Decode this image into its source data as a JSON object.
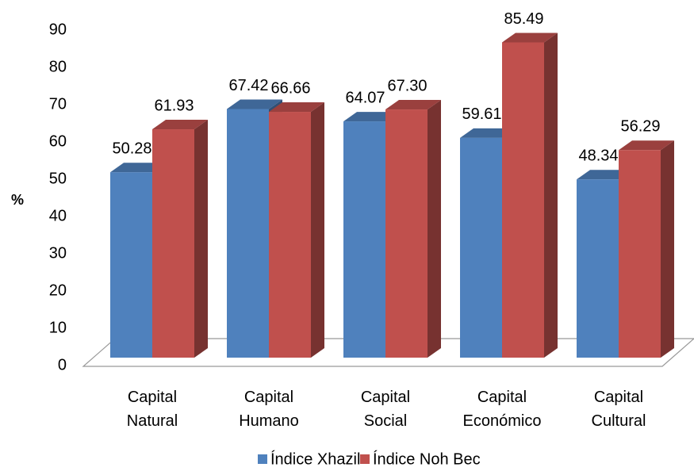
{
  "chart_data": {
    "type": "bar3d",
    "y_label": "%",
    "categories": [
      "Capital Natural",
      "Capital Humano",
      "Capital Social",
      "Capital Económico",
      "Capital Cultural"
    ],
    "series": [
      {
        "name": "Índice Xhazil",
        "color": "#4f81bd",
        "values": [
          50.28,
          67.42,
          64.07,
          59.61,
          48.34
        ],
        "value_labels": [
          "50.28",
          "67.42",
          "64.07",
          "59.61",
          "48.34"
        ]
      },
      {
        "name": "Índice Noh Bec",
        "color": "#c0504d",
        "values": [
          61.93,
          66.66,
          67.3,
          85.49,
          56.29
        ],
        "value_labels": [
          "61.93",
          "66.66",
          "67.30",
          "85.49",
          "56.29"
        ]
      }
    ],
    "ylim": [
      0,
      90
    ],
    "yticks": [
      0,
      10,
      20,
      30,
      40,
      50,
      60,
      70,
      80,
      90
    ],
    "legend": "bottom"
  }
}
